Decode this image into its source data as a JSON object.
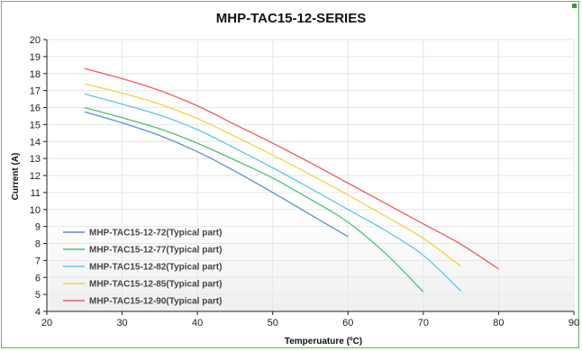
{
  "chart_data": {
    "type": "line",
    "title": "MHP-TAC15-12-SERIES",
    "xlabel": "Temperuature (ºC)",
    "ylabel": "Current (A)",
    "xlim": [
      20,
      90
    ],
    "ylim": [
      4,
      20
    ],
    "xticks": [
      20,
      30,
      40,
      50,
      60,
      70,
      80,
      90
    ],
    "yticks": [
      4,
      5,
      6,
      7,
      8,
      9,
      10,
      11,
      12,
      13,
      14,
      15,
      16,
      17,
      18,
      19,
      20
    ],
    "grid": true,
    "legend_position": "bottom-left",
    "series": [
      {
        "name": "MHP-TAC15-12-72(Typical part)",
        "color": "#5b8fd6",
        "x": [
          25,
          30,
          35,
          40,
          45,
          50,
          55,
          60
        ],
        "y": [
          15.75,
          15.1,
          14.35,
          13.4,
          12.25,
          11.0,
          9.7,
          8.4
        ]
      },
      {
        "name": "MHP-TAC15-12-77(Typical part)",
        "color": "#4cc07a",
        "x": [
          25,
          30,
          35,
          40,
          45,
          50,
          55,
          60,
          65,
          70
        ],
        "y": [
          16.0,
          15.4,
          14.75,
          13.9,
          12.9,
          11.85,
          10.6,
          9.25,
          7.4,
          5.15
        ]
      },
      {
        "name": "MHP-TAC15-12-82(Typical part)",
        "color": "#5bc8ef",
        "x": [
          25,
          30,
          35,
          40,
          45,
          50,
          55,
          60,
          65,
          70,
          75
        ],
        "y": [
          16.8,
          16.2,
          15.55,
          14.7,
          13.6,
          12.45,
          11.25,
          10.0,
          8.75,
          7.3,
          5.2
        ]
      },
      {
        "name": "MHP-TAC15-12-85(Typical part)",
        "color": "#f7cf45",
        "x": [
          25,
          30,
          35,
          40,
          45,
          50,
          55,
          60,
          65,
          70,
          75
        ],
        "y": [
          17.4,
          16.85,
          16.2,
          15.35,
          14.3,
          13.2,
          12.05,
          10.85,
          9.6,
          8.3,
          6.65
        ]
      },
      {
        "name": "MHP-TAC15-12-90(Typical part)",
        "color": "#f25a5a",
        "x": [
          25,
          30,
          35,
          40,
          45,
          50,
          55,
          60,
          65,
          70,
          75,
          80
        ],
        "y": [
          18.3,
          17.7,
          17.0,
          16.1,
          15.0,
          13.9,
          12.75,
          11.55,
          10.35,
          9.15,
          7.95,
          6.5
        ]
      }
    ]
  }
}
